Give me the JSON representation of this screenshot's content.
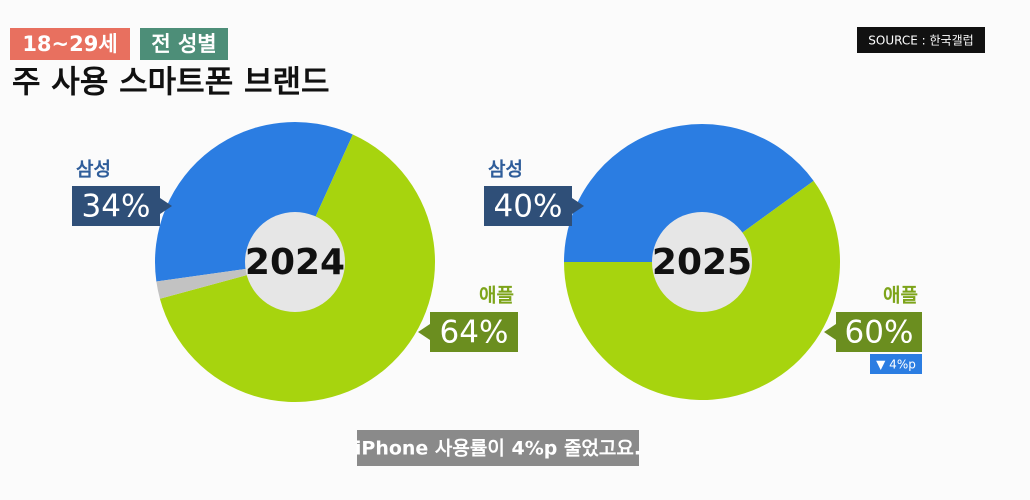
{
  "header": {
    "tags": [
      "18~29세",
      "전 성별"
    ],
    "title": "주 사용 스마트폰 브랜드",
    "source": "SOURCE : 한국갤럽"
  },
  "chart_data": [
    {
      "type": "pie",
      "center_label": "2024",
      "categories": [
        "삼성",
        "애플",
        null
      ],
      "values": [
        34,
        64,
        2
      ],
      "value_labels": [
        "34%",
        "64%",
        null
      ],
      "colors": [
        "#2b7de2",
        "#a7d40e",
        "#c2c2c2"
      ]
    },
    {
      "type": "pie",
      "center_label": "2025",
      "categories": [
        "삼성",
        "애플"
      ],
      "values": [
        40,
        60
      ],
      "value_labels": [
        "40%",
        "60%"
      ],
      "colors": [
        "#2b7de2",
        "#a7d40e"
      ],
      "annotation": "▼ 4%p"
    }
  ],
  "caption": "iPhone 사용률이 4%p 줄었고요."
}
